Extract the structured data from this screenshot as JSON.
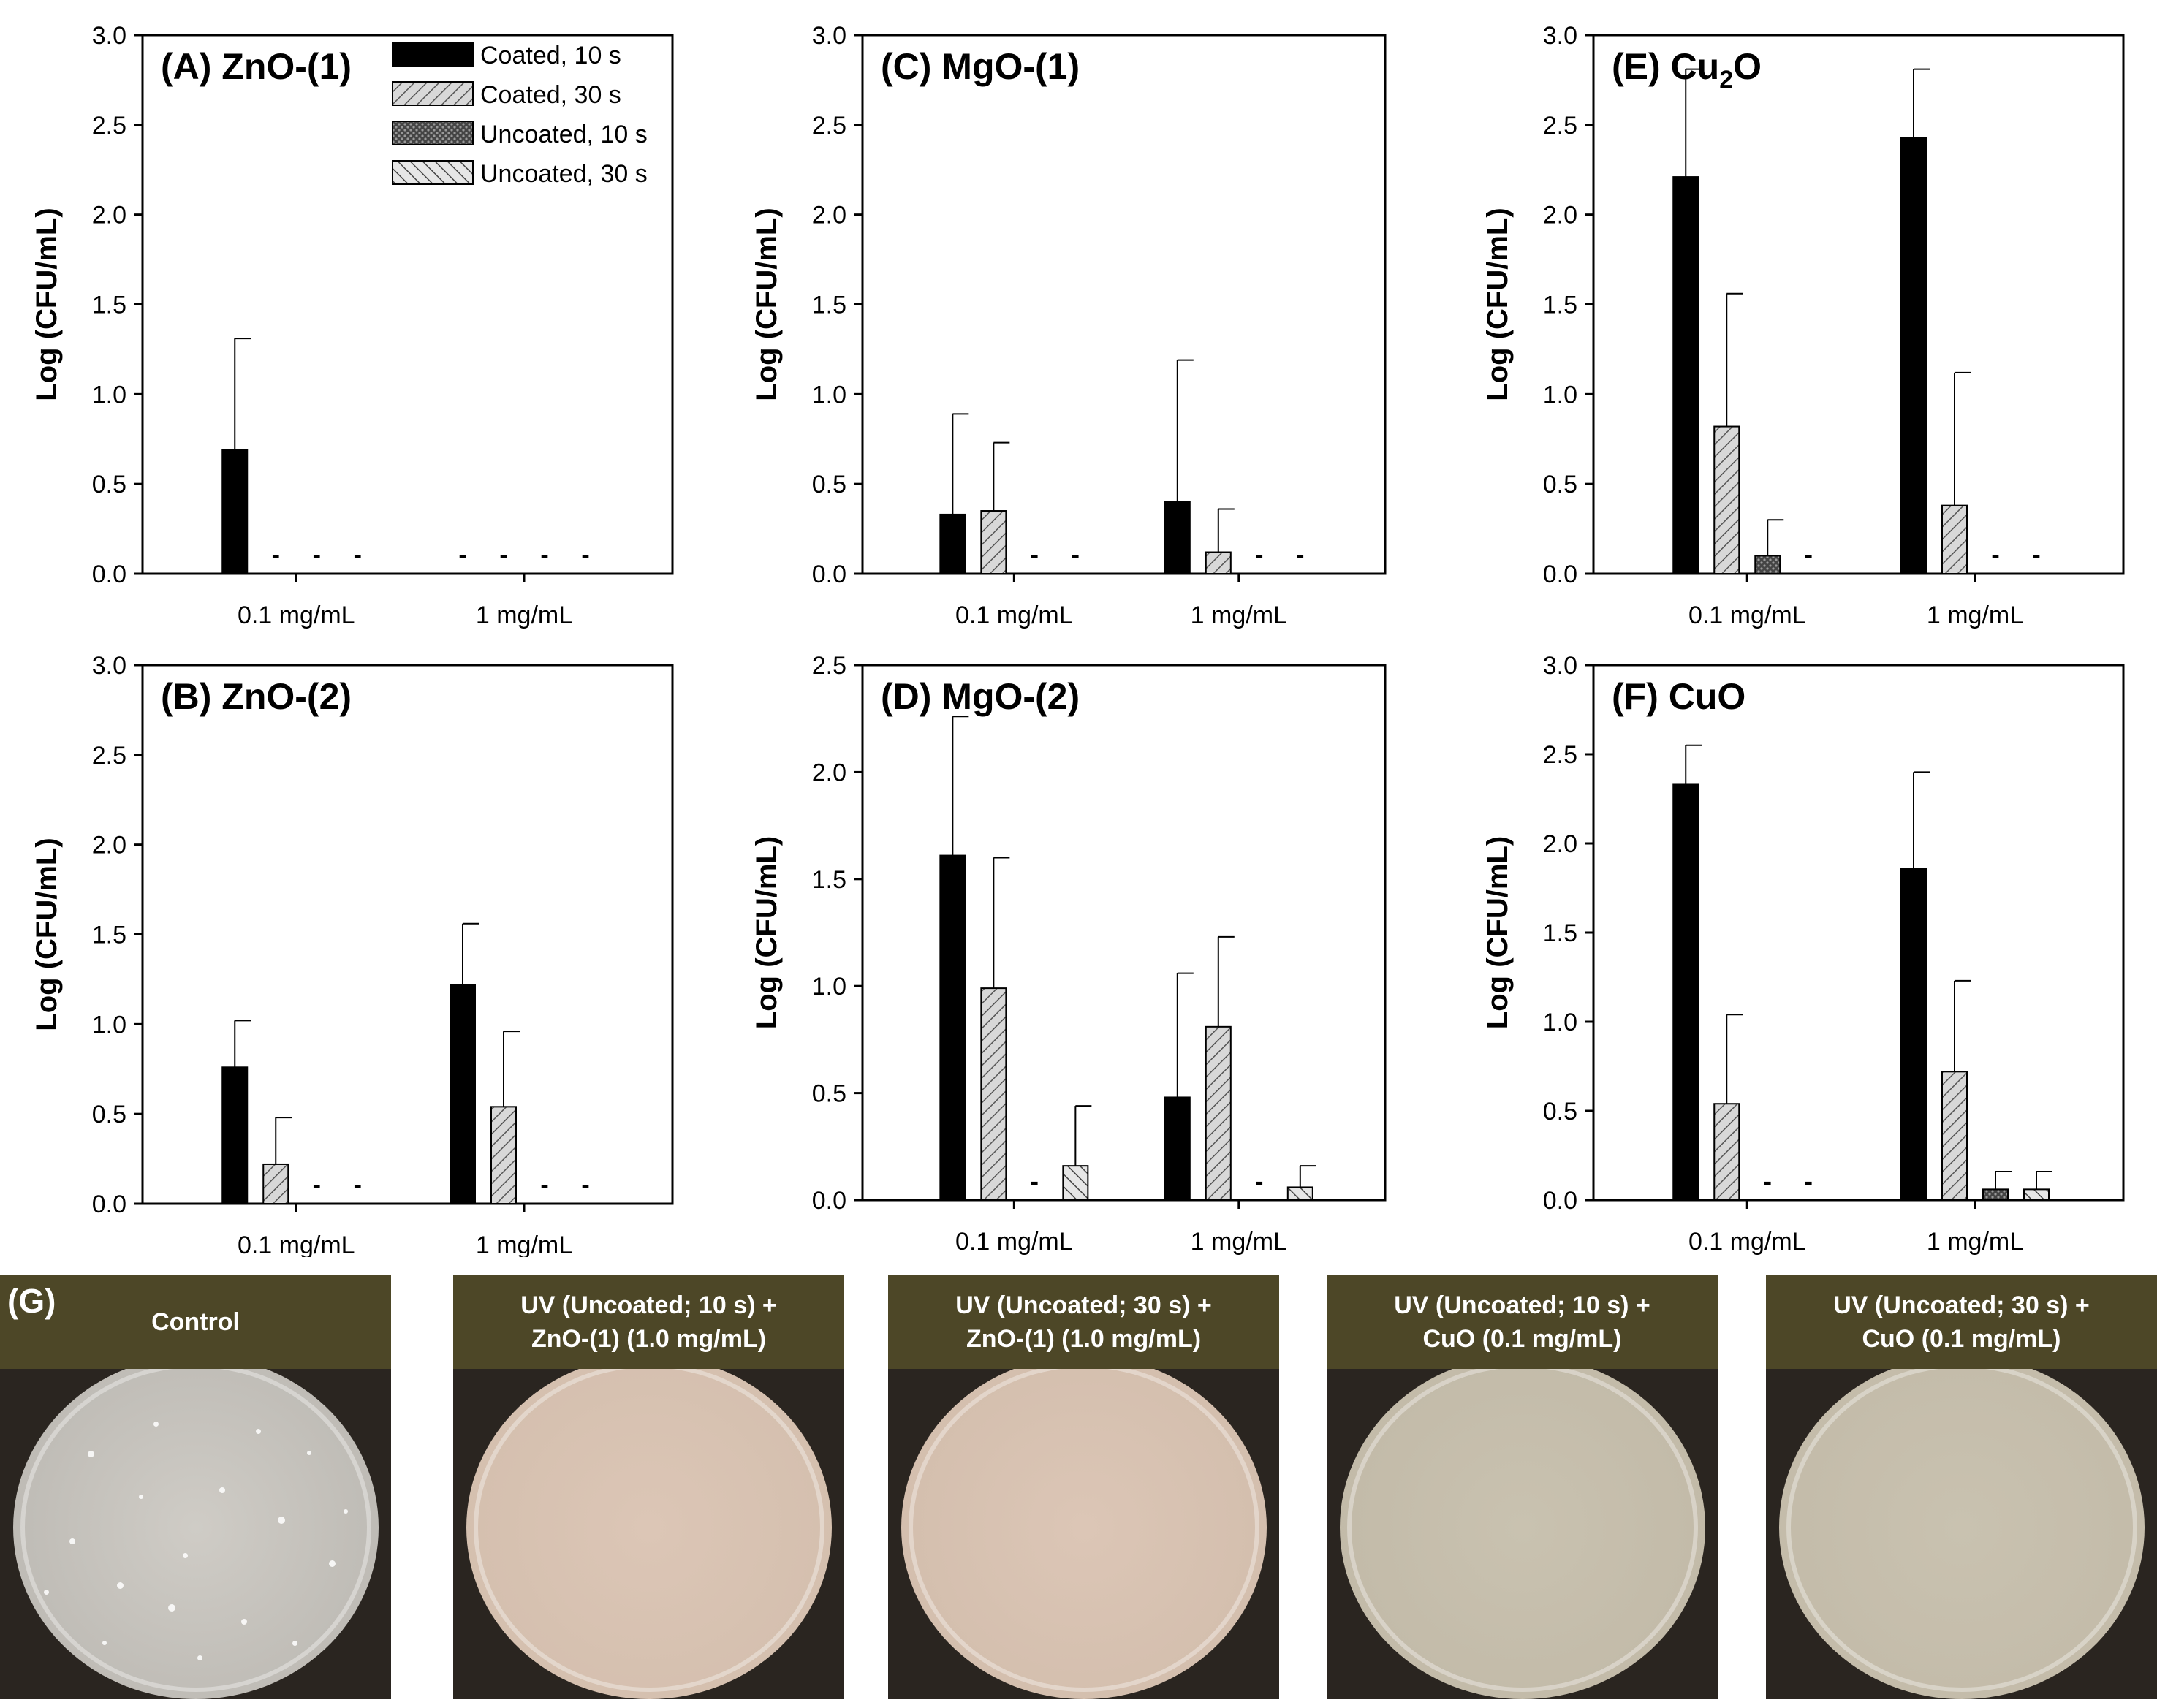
{
  "legend": [
    {
      "label": "Coated, 10 s",
      "pattern": "solid"
    },
    {
      "label": "Coated, 30 s",
      "pattern": "hatch-fwd"
    },
    {
      "label": "Uncoated, 10 s",
      "pattern": "dots"
    },
    {
      "label": "Uncoated, 30 s",
      "pattern": "hatch-back"
    }
  ],
  "chart_data": [
    {
      "type": "bar",
      "panel": "A",
      "title": "(A) ZnO-(1)",
      "ylabel": "Log (CFU/mL)",
      "ylim": [
        0,
        3.0
      ],
      "yticks": [
        "0.0",
        "0.5",
        "1.0",
        "1.5",
        "2.0",
        "2.5",
        "3.0"
      ],
      "categories": [
        "0.1 mg/mL",
        "1 mg/mL"
      ],
      "series": [
        {
          "name": "Coated, 10 s",
          "values": [
            0.69,
            null
          ],
          "errors": [
            0.62,
            null
          ]
        },
        {
          "name": "Coated, 30 s",
          "values": [
            null,
            null
          ],
          "errors": [
            null,
            null
          ]
        },
        {
          "name": "Uncoated, 10 s",
          "values": [
            null,
            null
          ],
          "errors": [
            null,
            null
          ]
        },
        {
          "name": "Uncoated, 30 s",
          "values": [
            null,
            null
          ],
          "errors": [
            null,
            null
          ]
        }
      ],
      "not_detected": [
        [
          false,
          true,
          true,
          true
        ],
        [
          true,
          true,
          true,
          true
        ]
      ]
    },
    {
      "type": "bar",
      "panel": "C",
      "title": "(C) MgO-(1)",
      "ylabel": "Log (CFU/mL)",
      "ylim": [
        0,
        3.0
      ],
      "yticks": [
        "0.0",
        "0.5",
        "1.0",
        "1.5",
        "2.0",
        "2.5",
        "3.0"
      ],
      "categories": [
        "0.1 mg/mL",
        "1 mg/mL"
      ],
      "series": [
        {
          "name": "Coated, 10 s",
          "values": [
            0.33,
            0.4
          ],
          "errors": [
            0.56,
            0.79
          ]
        },
        {
          "name": "Coated, 30 s",
          "values": [
            0.35,
            0.12
          ],
          "errors": [
            0.38,
            0.24
          ]
        },
        {
          "name": "Uncoated, 10 s",
          "values": [
            null,
            null
          ],
          "errors": [
            null,
            null
          ]
        },
        {
          "name": "Uncoated, 30 s",
          "values": [
            null,
            null
          ],
          "errors": [
            null,
            null
          ]
        }
      ],
      "not_detected": [
        [
          false,
          false,
          true,
          true
        ],
        [
          false,
          false,
          true,
          true
        ]
      ]
    },
    {
      "type": "bar",
      "panel": "E",
      "title": "(E) Cu",
      "title_sub": "2",
      "title_end": "O",
      "ylabel": "Log (CFU/mL)",
      "ylim": [
        0,
        3.0
      ],
      "yticks": [
        "0.0",
        "0.5",
        "1.0",
        "1.5",
        "2.0",
        "2.5",
        "3.0"
      ],
      "categories": [
        "0.1 mg/mL",
        "1 mg/mL"
      ],
      "series": [
        {
          "name": "Coated, 10 s",
          "values": [
            2.21,
            2.43
          ],
          "errors": [
            0.6,
            0.38
          ]
        },
        {
          "name": "Coated, 30 s",
          "values": [
            0.82,
            0.38
          ],
          "errors": [
            0.74,
            0.74
          ]
        },
        {
          "name": "Uncoated, 10 s",
          "values": [
            0.1,
            null
          ],
          "errors": [
            0.2,
            null
          ]
        },
        {
          "name": "Uncoated, 30 s",
          "values": [
            null,
            null
          ],
          "errors": [
            null,
            null
          ]
        }
      ],
      "not_detected": [
        [
          false,
          false,
          false,
          true
        ],
        [
          false,
          false,
          true,
          true
        ]
      ]
    },
    {
      "type": "bar",
      "panel": "B",
      "title": "(B) ZnO-(2)",
      "ylabel": "Log (CFU/mL)",
      "ylim": [
        0,
        3.0
      ],
      "yticks": [
        "0.0",
        "0.5",
        "1.0",
        "1.5",
        "2.0",
        "2.5",
        "3.0"
      ],
      "categories": [
        "0.1 mg/mL",
        "1 mg/mL"
      ],
      "series": [
        {
          "name": "Coated, 10 s",
          "values": [
            0.76,
            1.22
          ],
          "errors": [
            0.26,
            0.34
          ]
        },
        {
          "name": "Coated, 30 s",
          "values": [
            0.22,
            0.54
          ],
          "errors": [
            0.26,
            0.42
          ]
        },
        {
          "name": "Uncoated, 10 s",
          "values": [
            null,
            null
          ],
          "errors": [
            null,
            null
          ]
        },
        {
          "name": "Uncoated, 30 s",
          "values": [
            null,
            null
          ],
          "errors": [
            null,
            null
          ]
        }
      ],
      "not_detected": [
        [
          false,
          false,
          true,
          true
        ],
        [
          false,
          false,
          true,
          true
        ]
      ]
    },
    {
      "type": "bar",
      "panel": "D",
      "title": "(D) MgO-(2)",
      "ylabel": "Log (CFU/mL)",
      "ylim": [
        0,
        2.5
      ],
      "yticks": [
        "0.0",
        "0.5",
        "1.0",
        "1.5",
        "2.0",
        "2.5"
      ],
      "categories": [
        "0.1 mg/mL",
        "1 mg/mL"
      ],
      "series": [
        {
          "name": "Coated, 10 s",
          "values": [
            1.61,
            0.48
          ],
          "errors": [
            0.65,
            0.58
          ]
        },
        {
          "name": "Coated, 30 s",
          "values": [
            0.99,
            0.81
          ],
          "errors": [
            0.61,
            0.42
          ]
        },
        {
          "name": "Uncoated, 10 s",
          "values": [
            null,
            null
          ],
          "errors": [
            null,
            null
          ]
        },
        {
          "name": "Uncoated, 30 s",
          "values": [
            0.16,
            0.06
          ],
          "errors": [
            0.28,
            0.1
          ]
        }
      ],
      "not_detected": [
        [
          false,
          false,
          true,
          false
        ],
        [
          false,
          false,
          true,
          false
        ]
      ]
    },
    {
      "type": "bar",
      "panel": "F",
      "title": "(F) CuO",
      "ylabel": "Log (CFU/mL)",
      "ylim": [
        0,
        3.0
      ],
      "yticks": [
        "0.0",
        "0.5",
        "1.0",
        "1.5",
        "2.0",
        "2.5",
        "3.0"
      ],
      "categories": [
        "0.1 mg/mL",
        "1 mg/mL"
      ],
      "series": [
        {
          "name": "Coated, 10 s",
          "values": [
            2.33,
            1.86
          ],
          "errors": [
            0.22,
            0.54
          ]
        },
        {
          "name": "Coated, 30 s",
          "values": [
            0.54,
            0.72
          ],
          "errors": [
            0.5,
            0.51
          ]
        },
        {
          "name": "Uncoated, 10 s",
          "values": [
            null,
            0.06
          ],
          "errors": [
            null,
            0.1
          ]
        },
        {
          "name": "Uncoated, 30 s",
          "values": [
            null,
            0.06
          ],
          "errors": [
            null,
            0.1
          ]
        }
      ],
      "not_detected": [
        [
          false,
          false,
          true,
          true
        ],
        [
          false,
          false,
          false,
          false
        ]
      ]
    }
  ],
  "not_detected_mark": "-",
  "photos": {
    "panel_label": "(G)",
    "items": [
      {
        "line1": "Control",
        "line2": "",
        "plate_color": "#c9c6c0"
      },
      {
        "line1": "UV (Uncoated; 10 s) +",
        "line2": "ZnO-(1) (1.0 mg/mL)",
        "plate_color": "#d8c4b4"
      },
      {
        "line1": "UV (Uncoated; 30 s) +",
        "line2": "ZnO-(1) (1.0 mg/mL)",
        "plate_color": "#d8c3b3"
      },
      {
        "line1": "UV (Uncoated; 10 s) +",
        "line2": "CuO (0.1 mg/mL)",
        "plate_color": "#c8c0ad"
      },
      {
        "line1": "UV (Uncoated; 30 s) +",
        "line2": "CuO (0.1 mg/mL)",
        "plate_color": "#c8c0ae"
      }
    ]
  }
}
